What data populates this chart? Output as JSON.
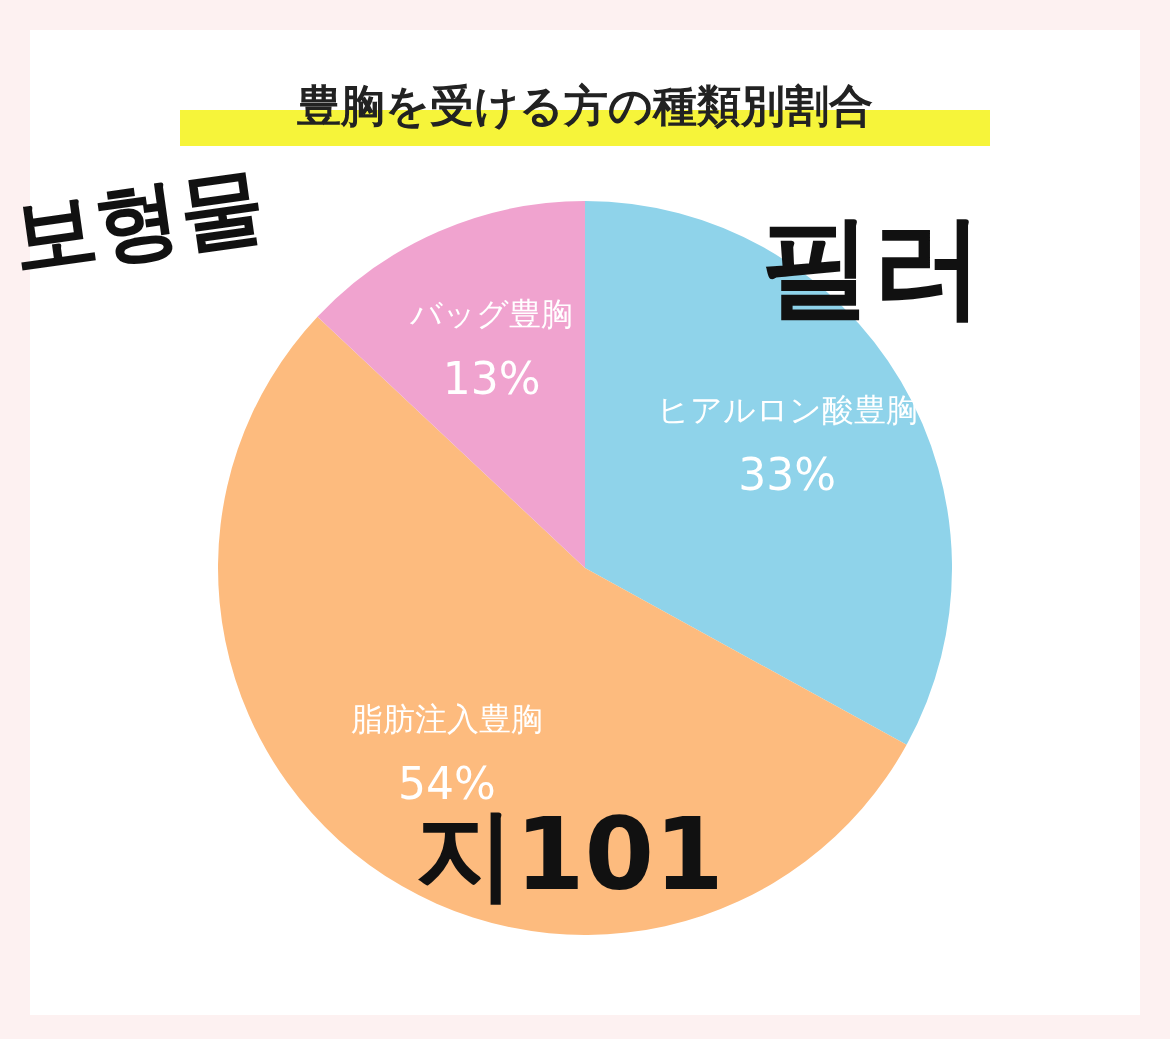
{
  "chart_data": {
    "type": "pie",
    "title": "豊胸を受ける方の種類別割合",
    "categories": [
      "ヒアルロン酸豊胸",
      "脂肪注入豊胸",
      "バッグ豊胸"
    ],
    "values": [
      33,
      54,
      13
    ],
    "colors": [
      "#8fd3ea",
      "#fdbb7e",
      "#f0a3cf"
    ],
    "value_labels": [
      "33%",
      "54%",
      "13%"
    ],
    "legend": false,
    "annotations": [
      "보형물",
      "필러",
      "지101"
    ]
  }
}
